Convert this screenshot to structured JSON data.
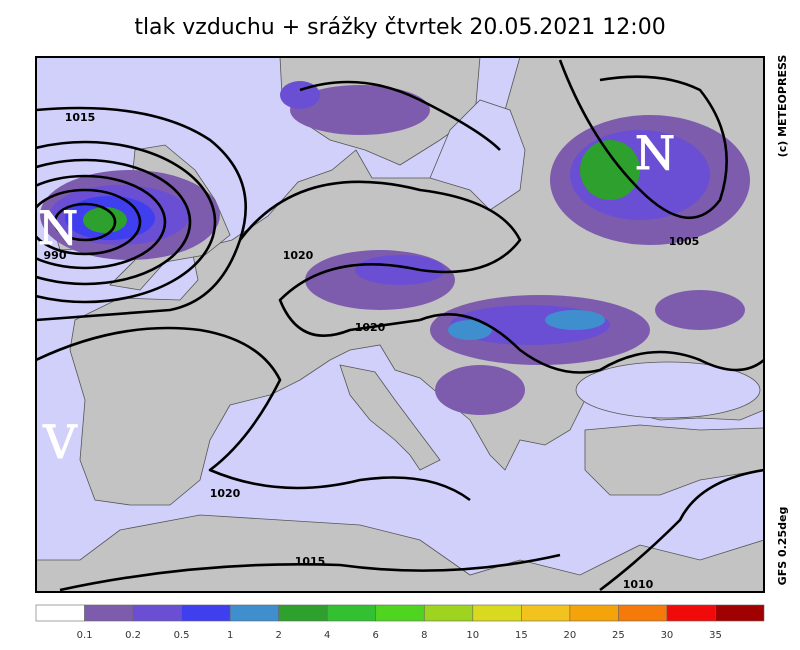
{
  "header": {
    "title": "tlak vzduchu + srážky čtvrtek 20.05.2021 12:00"
  },
  "map": {
    "isobar_labels": [
      "1015",
      "1020",
      "1020",
      "1020",
      "1015",
      "1010",
      "1005",
      "990"
    ],
    "pressure_centers": [
      "N",
      "N",
      "V"
    ],
    "credit": "(c) METEOPRESS",
    "model": "GFS 0.25deg"
  },
  "colorbar": {
    "colors": [
      "#ffffff",
      "#7e5cad",
      "#6a4fd4",
      "#3f3ff0",
      "#3f8fcf",
      "#2ea02e",
      "#33c033",
      "#4fd41f",
      "#9ed41f",
      "#d9d91f",
      "#f2c21f",
      "#f5a30a",
      "#f57a0a",
      "#f00a0a",
      "#a00000"
    ],
    "labels": [
      "0.1",
      "0.2",
      "0.5",
      "1",
      "2",
      "4",
      "6",
      "8",
      "10",
      "15",
      "20",
      "25",
      "30",
      "35"
    ]
  }
}
